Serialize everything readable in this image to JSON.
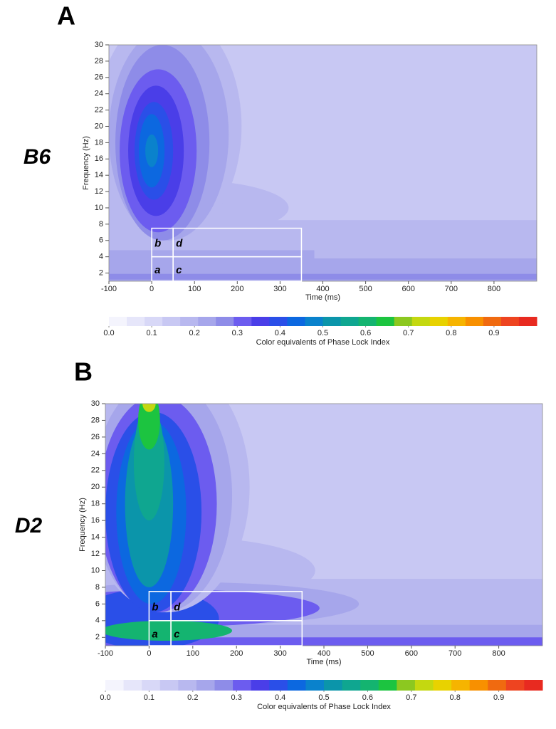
{
  "chart_data": [
    {
      "type": "heatmap",
      "panel": "A",
      "group": "B6",
      "xlabel": "Time (ms)",
      "ylabel": "Frequency (Hz)",
      "xlim": [
        -100,
        900
      ],
      "xticks": [
        -100,
        0,
        100,
        200,
        300,
        400,
        500,
        600,
        700,
        800
      ],
      "ylim": [
        1,
        30
      ],
      "yticks": [
        2,
        4,
        6,
        8,
        10,
        12,
        14,
        16,
        18,
        20,
        22,
        24,
        26,
        28,
        30
      ],
      "regions": [
        {
          "label": "a",
          "x": [
            0,
            50
          ],
          "y": [
            1,
            4
          ]
        },
        {
          "label": "b",
          "x": [
            0,
            50
          ],
          "y": [
            4,
            7.5
          ]
        },
        {
          "label": "c",
          "x": [
            50,
            350
          ],
          "y": [
            1,
            4
          ]
        },
        {
          "label": "d",
          "x": [
            50,
            350
          ],
          "y": [
            4,
            7.5
          ]
        }
      ],
      "colorbar": {
        "label": "Color equivalents of Phase Lock Index",
        "lim": [
          0,
          1
        ],
        "ticks": [
          {
            "value": 0,
            "label": "0.0"
          },
          0.1,
          0.2,
          0.3,
          0.4,
          0.5,
          0.6,
          0.7,
          0.8,
          0.9
        ],
        "colors": [
          "#f4f4fd",
          "#e6e6fa",
          "#d8d8f7",
          "#c8c8f3",
          "#b8b8ef",
          "#a6a6eb",
          "#8e8ce8",
          "#6c5cef",
          "#4a3ee8",
          "#2a4fe8",
          "#0c68e0",
          "#0a82cc",
          "#0b95aa",
          "#0fa690",
          "#14b470",
          "#1cc440",
          "#8cc820",
          "#c4d810",
          "#e8d200",
          "#f6b400",
          "#f89000",
          "#f06a10",
          "#ee4420",
          "#e82a20"
        ]
      }
    },
    {
      "type": "heatmap",
      "panel": "B",
      "group": "D2",
      "xlabel": "Time (ms)",
      "ylabel": "Frequency (Hz)",
      "xlim": [
        -100,
        900
      ],
      "xticks": [
        -100,
        0,
        100,
        200,
        300,
        400,
        500,
        600,
        700,
        800
      ],
      "ylim": [
        1,
        30
      ],
      "yticks": [
        2,
        4,
        6,
        8,
        10,
        12,
        14,
        16,
        18,
        20,
        22,
        24,
        26,
        28,
        30
      ],
      "regions": [
        {
          "label": "a",
          "x": [
            0,
            50
          ],
          "y": [
            1,
            4
          ]
        },
        {
          "label": "b",
          "x": [
            0,
            50
          ],
          "y": [
            4,
            7.5
          ]
        },
        {
          "label": "c",
          "x": [
            50,
            350
          ],
          "y": [
            1,
            4
          ]
        },
        {
          "label": "d",
          "x": [
            50,
            350
          ],
          "y": [
            4,
            7.5
          ]
        }
      ],
      "colorbar": {
        "label": "Color equivalents of Phase Lock Index",
        "lim": [
          0,
          1
        ],
        "ticks": [
          {
            "value": 0,
            "label": "0.0"
          },
          0.1,
          0.2,
          0.3,
          0.4,
          0.5,
          0.6,
          0.7,
          0.8,
          0.9
        ],
        "colors": [
          "#f4f4fd",
          "#e6e6fa",
          "#d8d8f7",
          "#c8c8f3",
          "#b8b8ef",
          "#a6a6eb",
          "#8e8ce8",
          "#6c5cef",
          "#4a3ee8",
          "#2a4fe8",
          "#0c68e0",
          "#0a82cc",
          "#0b95aa",
          "#0fa690",
          "#14b470",
          "#1cc440",
          "#8cc820",
          "#c4d810",
          "#e8d200",
          "#f6b400",
          "#f89000",
          "#f06a10",
          "#ee4420",
          "#e82a20"
        ]
      }
    }
  ]
}
